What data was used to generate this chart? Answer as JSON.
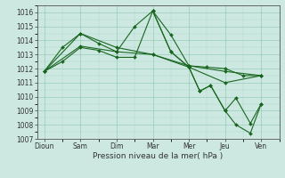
{
  "xlabel": "Pression niveau de la mer( hPa )",
  "bg_color": "#cce8e0",
  "grid_color": "#99ccbb",
  "line_color": "#1a6620",
  "ylim": [
    1007,
    1016.5
  ],
  "yticks": [
    1007,
    1008,
    1009,
    1010,
    1011,
    1012,
    1013,
    1014,
    1015,
    1016
  ],
  "xtick_labels": [
    "Dioun",
    "Sam",
    "Dim",
    "Mar",
    "Mer",
    "Jeu",
    "Ven"
  ],
  "xtick_positions": [
    0,
    1,
    2,
    3,
    4,
    5,
    6
  ],
  "line1_x": [
    0,
    1,
    2,
    3,
    4,
    5,
    6
  ],
  "line1_y": [
    1011.8,
    1013.6,
    1013.2,
    1013.0,
    1012.2,
    1011.8,
    1011.5
  ],
  "line2_x": [
    0,
    1,
    2,
    3,
    4,
    5,
    6
  ],
  "line2_y": [
    1011.8,
    1014.5,
    1013.5,
    1013.0,
    1012.1,
    1011.0,
    1011.5
  ],
  "line3_x": [
    0.0,
    0.5,
    1.0,
    1.5,
    2.0,
    2.5,
    3.0,
    3.5,
    4.0,
    4.5,
    5.0,
    5.5,
    6.0
  ],
  "line3_y": [
    1011.8,
    1013.5,
    1014.5,
    1013.8,
    1013.2,
    1015.0,
    1016.1,
    1014.4,
    1012.2,
    1012.1,
    1012.0,
    1011.5,
    1011.5
  ],
  "line4_x": [
    0.0,
    0.5,
    1.0,
    1.5,
    2.0,
    2.5,
    3.0,
    3.5,
    4.0,
    4.3,
    4.6,
    5.0,
    5.3,
    5.7,
    6.0
  ],
  "line4_y": [
    1011.8,
    1012.5,
    1013.5,
    1013.3,
    1012.8,
    1012.8,
    1016.1,
    1013.2,
    1012.1,
    1010.4,
    1010.8,
    1009.0,
    1009.9,
    1008.1,
    1009.5
  ],
  "line5_x": [
    3.0,
    3.5,
    4.0,
    4.3,
    4.6,
    5.0,
    5.3,
    5.7,
    6.0
  ],
  "line5_y": [
    1016.1,
    1013.2,
    1012.1,
    1010.4,
    1010.8,
    1009.0,
    1008.0,
    1007.4,
    1009.5
  ]
}
